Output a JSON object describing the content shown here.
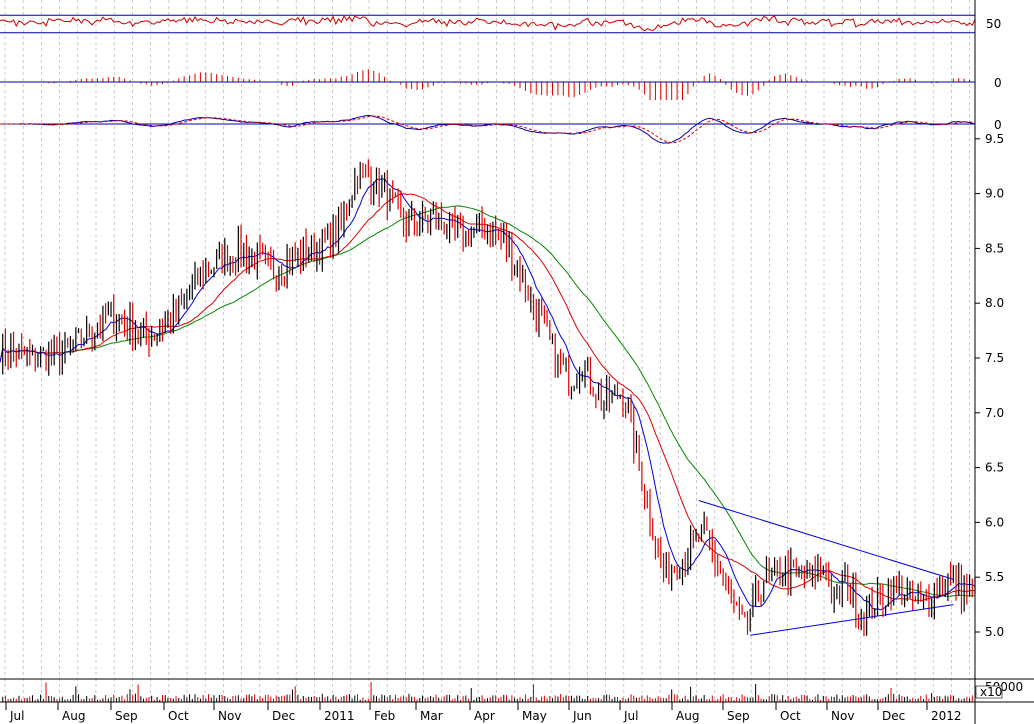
{
  "chart_data": {
    "type": "candlestick",
    "months": [
      "Jul",
      "Aug",
      "Sep",
      "Oct",
      "Nov",
      "Dec",
      "2011",
      "Feb",
      "Mar",
      "Apr",
      "May",
      "Jun",
      "Jul",
      "Aug",
      "Sep",
      "Oct",
      "Nov",
      "Dec",
      "2012"
    ],
    "price_axis": {
      "ticks": [
        "9.5",
        "9.0",
        "8.5",
        "8.0",
        "7.5",
        "7.0",
        "6.5",
        "6.0",
        "5.5",
        "5.0"
      ],
      "tick_values": [
        9.5,
        9.0,
        8.5,
        8.0,
        7.5,
        7.0,
        6.5,
        6.0,
        5.5,
        5.0
      ],
      "ylim": [
        4.8,
        9.6
      ]
    },
    "rsi_panel": {
      "tick": "50",
      "upper_line": 70,
      "lower_line": 30
    },
    "histogram_panel": {
      "tick": "0"
    },
    "macd_panel": {
      "tick": "0"
    },
    "volume_panel": {
      "tick": "50000",
      "multiplier_label": "x10"
    },
    "close_keypoints": {
      "x": [
        0,
        12,
        25,
        40,
        55,
        65,
        75,
        90,
        100,
        110,
        118,
        126,
        132,
        140,
        150,
        160,
        170,
        180,
        188,
        195,
        200,
        205,
        210,
        215,
        222,
        230,
        245,
        260,
        275,
        282,
        290,
        300,
        305,
        308,
        312,
        318,
        330,
        340,
        350,
        360
      ],
      "y": [
        7.6,
        7.5,
        7.55,
        7.9,
        7.7,
        7.9,
        8.3,
        8.5,
        8.3,
        8.45,
        8.5,
        8.7,
        9.2,
        9.1,
        8.7,
        8.8,
        8.6,
        8.7,
        8.5,
        8.1,
        7.8,
        7.5,
        7.3,
        7.45,
        7.1,
        7.2,
        5.5,
        5.9,
        5.0,
        5.5,
        5.55,
        5.5,
        5.65,
        5.2,
        5.5,
        5.15,
        5.4,
        5.25,
        5.5,
        5.3
      ]
    },
    "trendlines": [
      {
        "name": "upper",
        "x": [
          258,
          352
        ],
        "y": [
          6.2,
          5.48
        ]
      },
      {
        "name": "lower",
        "x": [
          277,
          352
        ],
        "y": [
          4.97,
          5.25
        ]
      }
    ],
    "colors": {
      "up": "#000000",
      "down": "#dd0000",
      "ma_short": "#0000dd",
      "ma_mid": "#dd0000",
      "ma_long": "#008800",
      "panel_lines": "#0000aa",
      "rsi": "#cc0000",
      "grid": "#aaaaaa"
    }
  }
}
